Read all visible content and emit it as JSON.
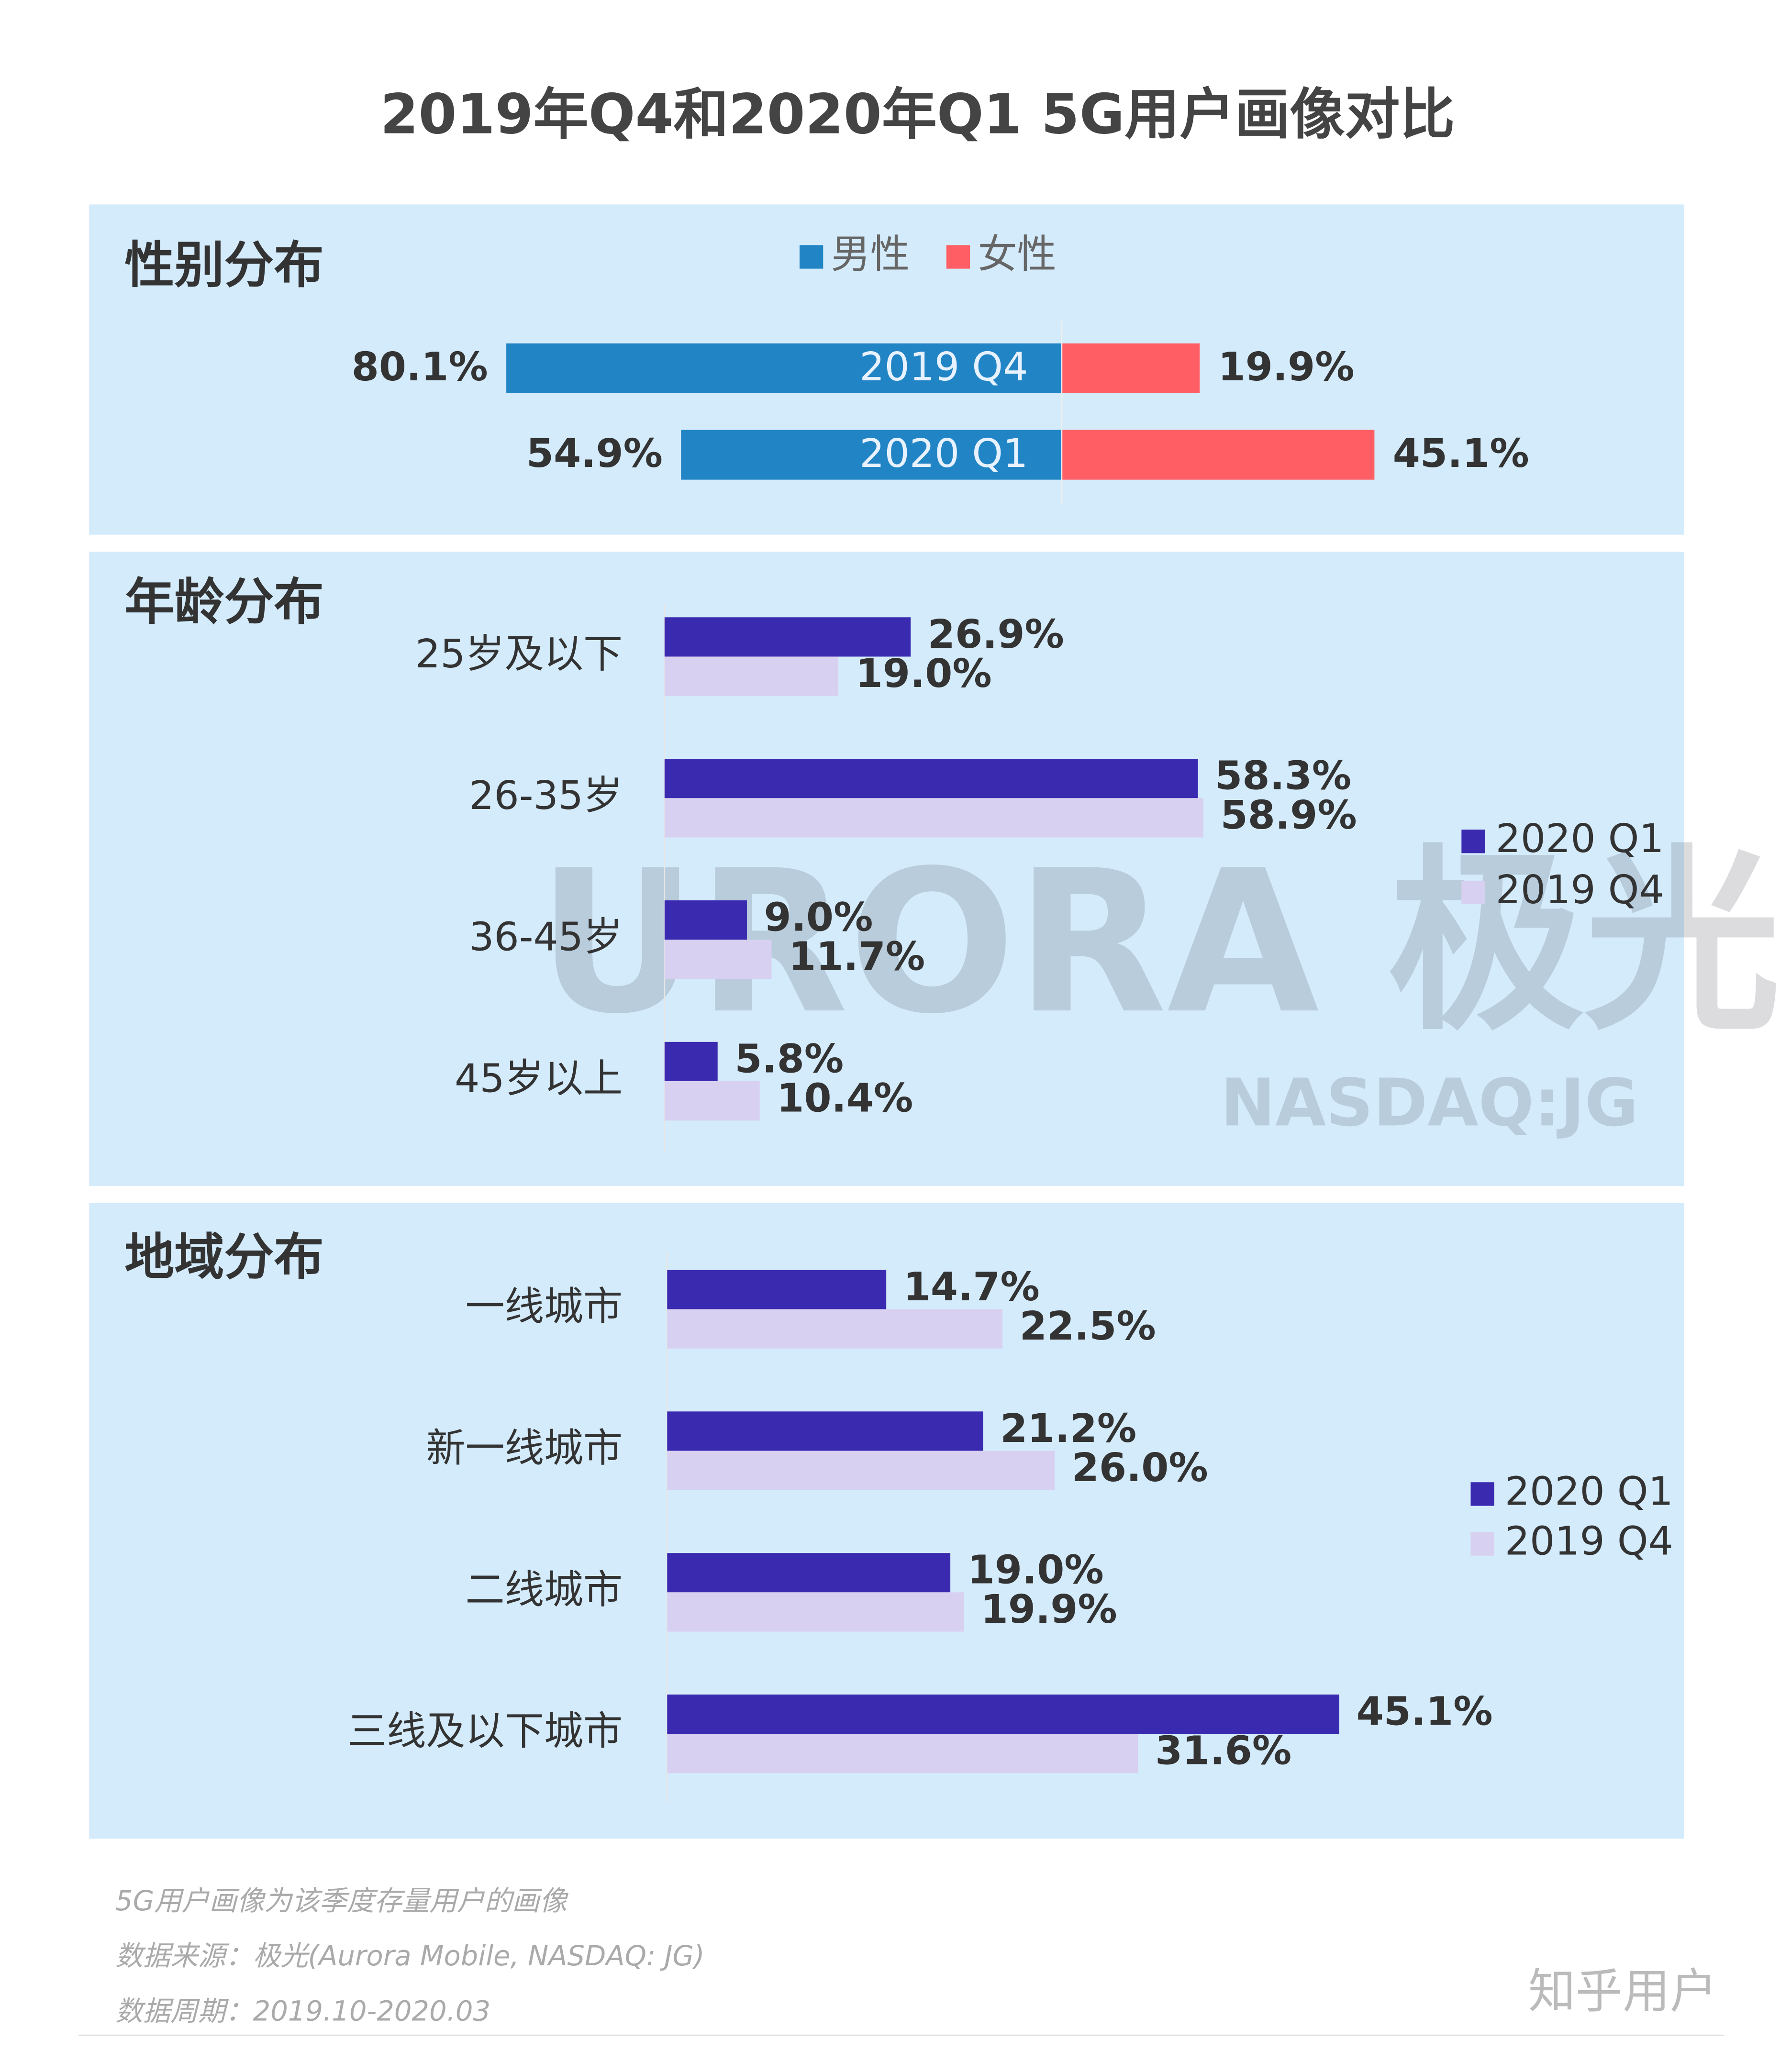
{
  "title": "2019年Q4和2020年Q1 5G用户画像对比",
  "chart_data": [
    {
      "type": "diverging_bar",
      "title": "性别分布",
      "categories": [
        "2019 Q4",
        "2020 Q1"
      ],
      "series": [
        {
          "name": "男性",
          "color": "#2185c5",
          "values": [
            80.1,
            54.9
          ],
          "value_labels": [
            "80.1%",
            "54.9%"
          ]
        },
        {
          "name": "女性",
          "color": "#ff5f64",
          "values": [
            19.9,
            45.1
          ],
          "value_labels": [
            "19.9%",
            "45.1%"
          ]
        }
      ]
    },
    {
      "type": "grouped_bar",
      "title": "年龄分布",
      "categories": [
        "25岁及以下",
        "26-35岁",
        "36-45岁",
        "45岁以上"
      ],
      "series": [
        {
          "name": "2020 Q1",
          "color": "#3a2ab0",
          "values": [
            26.9,
            58.3,
            9.0,
            5.8
          ],
          "value_labels": [
            "26.9%",
            "58.3%",
            "9.0%",
            "5.8%"
          ]
        },
        {
          "name": "2019 Q4",
          "color": "#d8d0f0",
          "values": [
            19.0,
            58.9,
            11.7,
            10.4
          ],
          "value_labels": [
            "19.0%",
            "58.9%",
            "11.7%",
            "10.4%"
          ]
        }
      ]
    },
    {
      "type": "grouped_bar",
      "title": "地域分布",
      "categories": [
        "一线城市",
        "新一线城市",
        "二线城市",
        "三线及以下城市"
      ],
      "series": [
        {
          "name": "2020 Q1",
          "color": "#3a2ab0",
          "values": [
            14.7,
            21.2,
            19.0,
            45.1
          ],
          "value_labels": [
            "14.7%",
            "21.2%",
            "19.0%",
            "45.1%"
          ]
        },
        {
          "name": "2019 Q4",
          "color": "#d8d0f0",
          "values": [
            22.5,
            26.0,
            19.9,
            31.6
          ],
          "value_labels": [
            "22.5%",
            "26.0%",
            "19.9%",
            "31.6%"
          ]
        }
      ]
    }
  ],
  "watermark": {
    "logo": "URORA 极光",
    "ticker": "NASDAQ:JG",
    "site": "知乎用户"
  },
  "notes": [
    "5G用户画像为该季度存量用户的画像",
    "数据来源：极光(Aurora Mobile, NASDAQ: JG)",
    "数据周期：2019.10-2020.03"
  ]
}
